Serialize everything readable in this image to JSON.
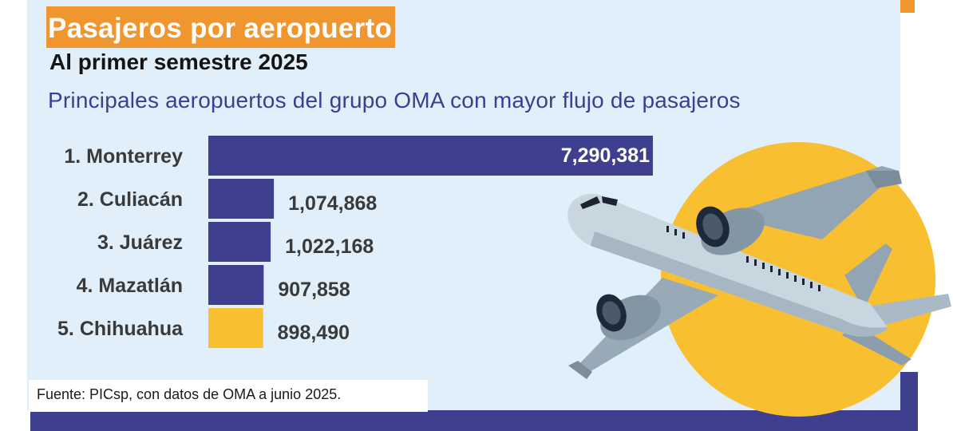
{
  "header": {
    "title": "Pasajeros por aeropuerto",
    "subtitle": "Al primer semestre 2025",
    "description": "Principales aeropuertos del grupo OMA con mayor flujo de pasajeros"
  },
  "source": "Fuente:  PICsp, con datos de OMA a junio 2025.",
  "colors": {
    "bar_default": "#3f3f8f",
    "bar_highlight": "#f8bf30",
    "title_background": "#f0962e",
    "panel_background": "#e0effa",
    "plane_circle": "#f8bf30"
  },
  "illustration": "airplane-icon",
  "chart_data": {
    "type": "bar",
    "orientation": "horizontal",
    "categories": [
      "1. Monterrey",
      "2. Culiacán",
      "3. Juárez",
      "4. Mazatlán",
      "5. Chihuahua"
    ],
    "values": [
      7290381,
      1074868,
      1022168,
      907858,
      898490
    ],
    "value_labels": [
      "7,290,381",
      "1,074,868",
      "1,022,168",
      "907,858",
      "898,490"
    ],
    "highlight": "5. Chihuahua",
    "xlim": [
      0,
      7290381
    ],
    "grid": false,
    "legend": "none"
  }
}
